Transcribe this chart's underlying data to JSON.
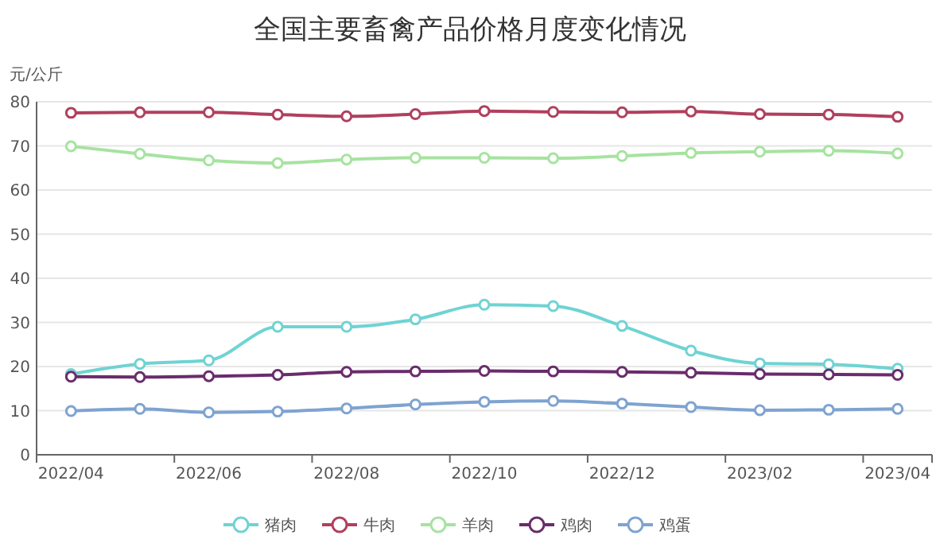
{
  "chart_data": {
    "type": "line",
    "title": "全国主要畜禽产品价格月度变化情况",
    "ylabel": "元/公斤",
    "categories": [
      "2022/04",
      null,
      "2022/06",
      null,
      "2022/08",
      null,
      "2022/10",
      null,
      "2022/12",
      null,
      "2023/02",
      null,
      "2023/04"
    ],
    "ylim": [
      0,
      80
    ],
    "yticks": [
      0,
      10,
      20,
      30,
      40,
      50,
      60,
      70,
      80
    ],
    "grid": "y",
    "legend": "bottom",
    "marker": "circle",
    "series": [
      {
        "name": "猪肉",
        "color": "#6fd3d3",
        "values": [
          18.3,
          20.6,
          21.4,
          29.0,
          29.0,
          30.7,
          34.0,
          33.7,
          29.2,
          23.6,
          20.7,
          20.5,
          19.5
        ]
      },
      {
        "name": "牛肉",
        "color": "#b0405f",
        "values": [
          77.5,
          77.6,
          77.6,
          77.1,
          76.7,
          77.2,
          77.9,
          77.7,
          77.6,
          77.8,
          77.2,
          77.1,
          76.6
        ]
      },
      {
        "name": "羊肉",
        "color": "#a6e3a0",
        "values": [
          69.9,
          68.2,
          66.7,
          66.1,
          66.9,
          67.3,
          67.3,
          67.2,
          67.7,
          68.4,
          68.7,
          68.9,
          68.3
        ]
      },
      {
        "name": "鸡肉",
        "color": "#6a2c6c",
        "values": [
          17.7,
          17.6,
          17.8,
          18.1,
          18.8,
          18.9,
          19.0,
          18.9,
          18.8,
          18.6,
          18.3,
          18.2,
          18.1
        ]
      },
      {
        "name": "鸡蛋",
        "color": "#7ea3d0",
        "values": [
          9.9,
          10.4,
          9.6,
          9.8,
          10.5,
          11.4,
          12.0,
          12.2,
          11.6,
          10.8,
          10.1,
          10.2,
          10.4
        ]
      }
    ]
  }
}
